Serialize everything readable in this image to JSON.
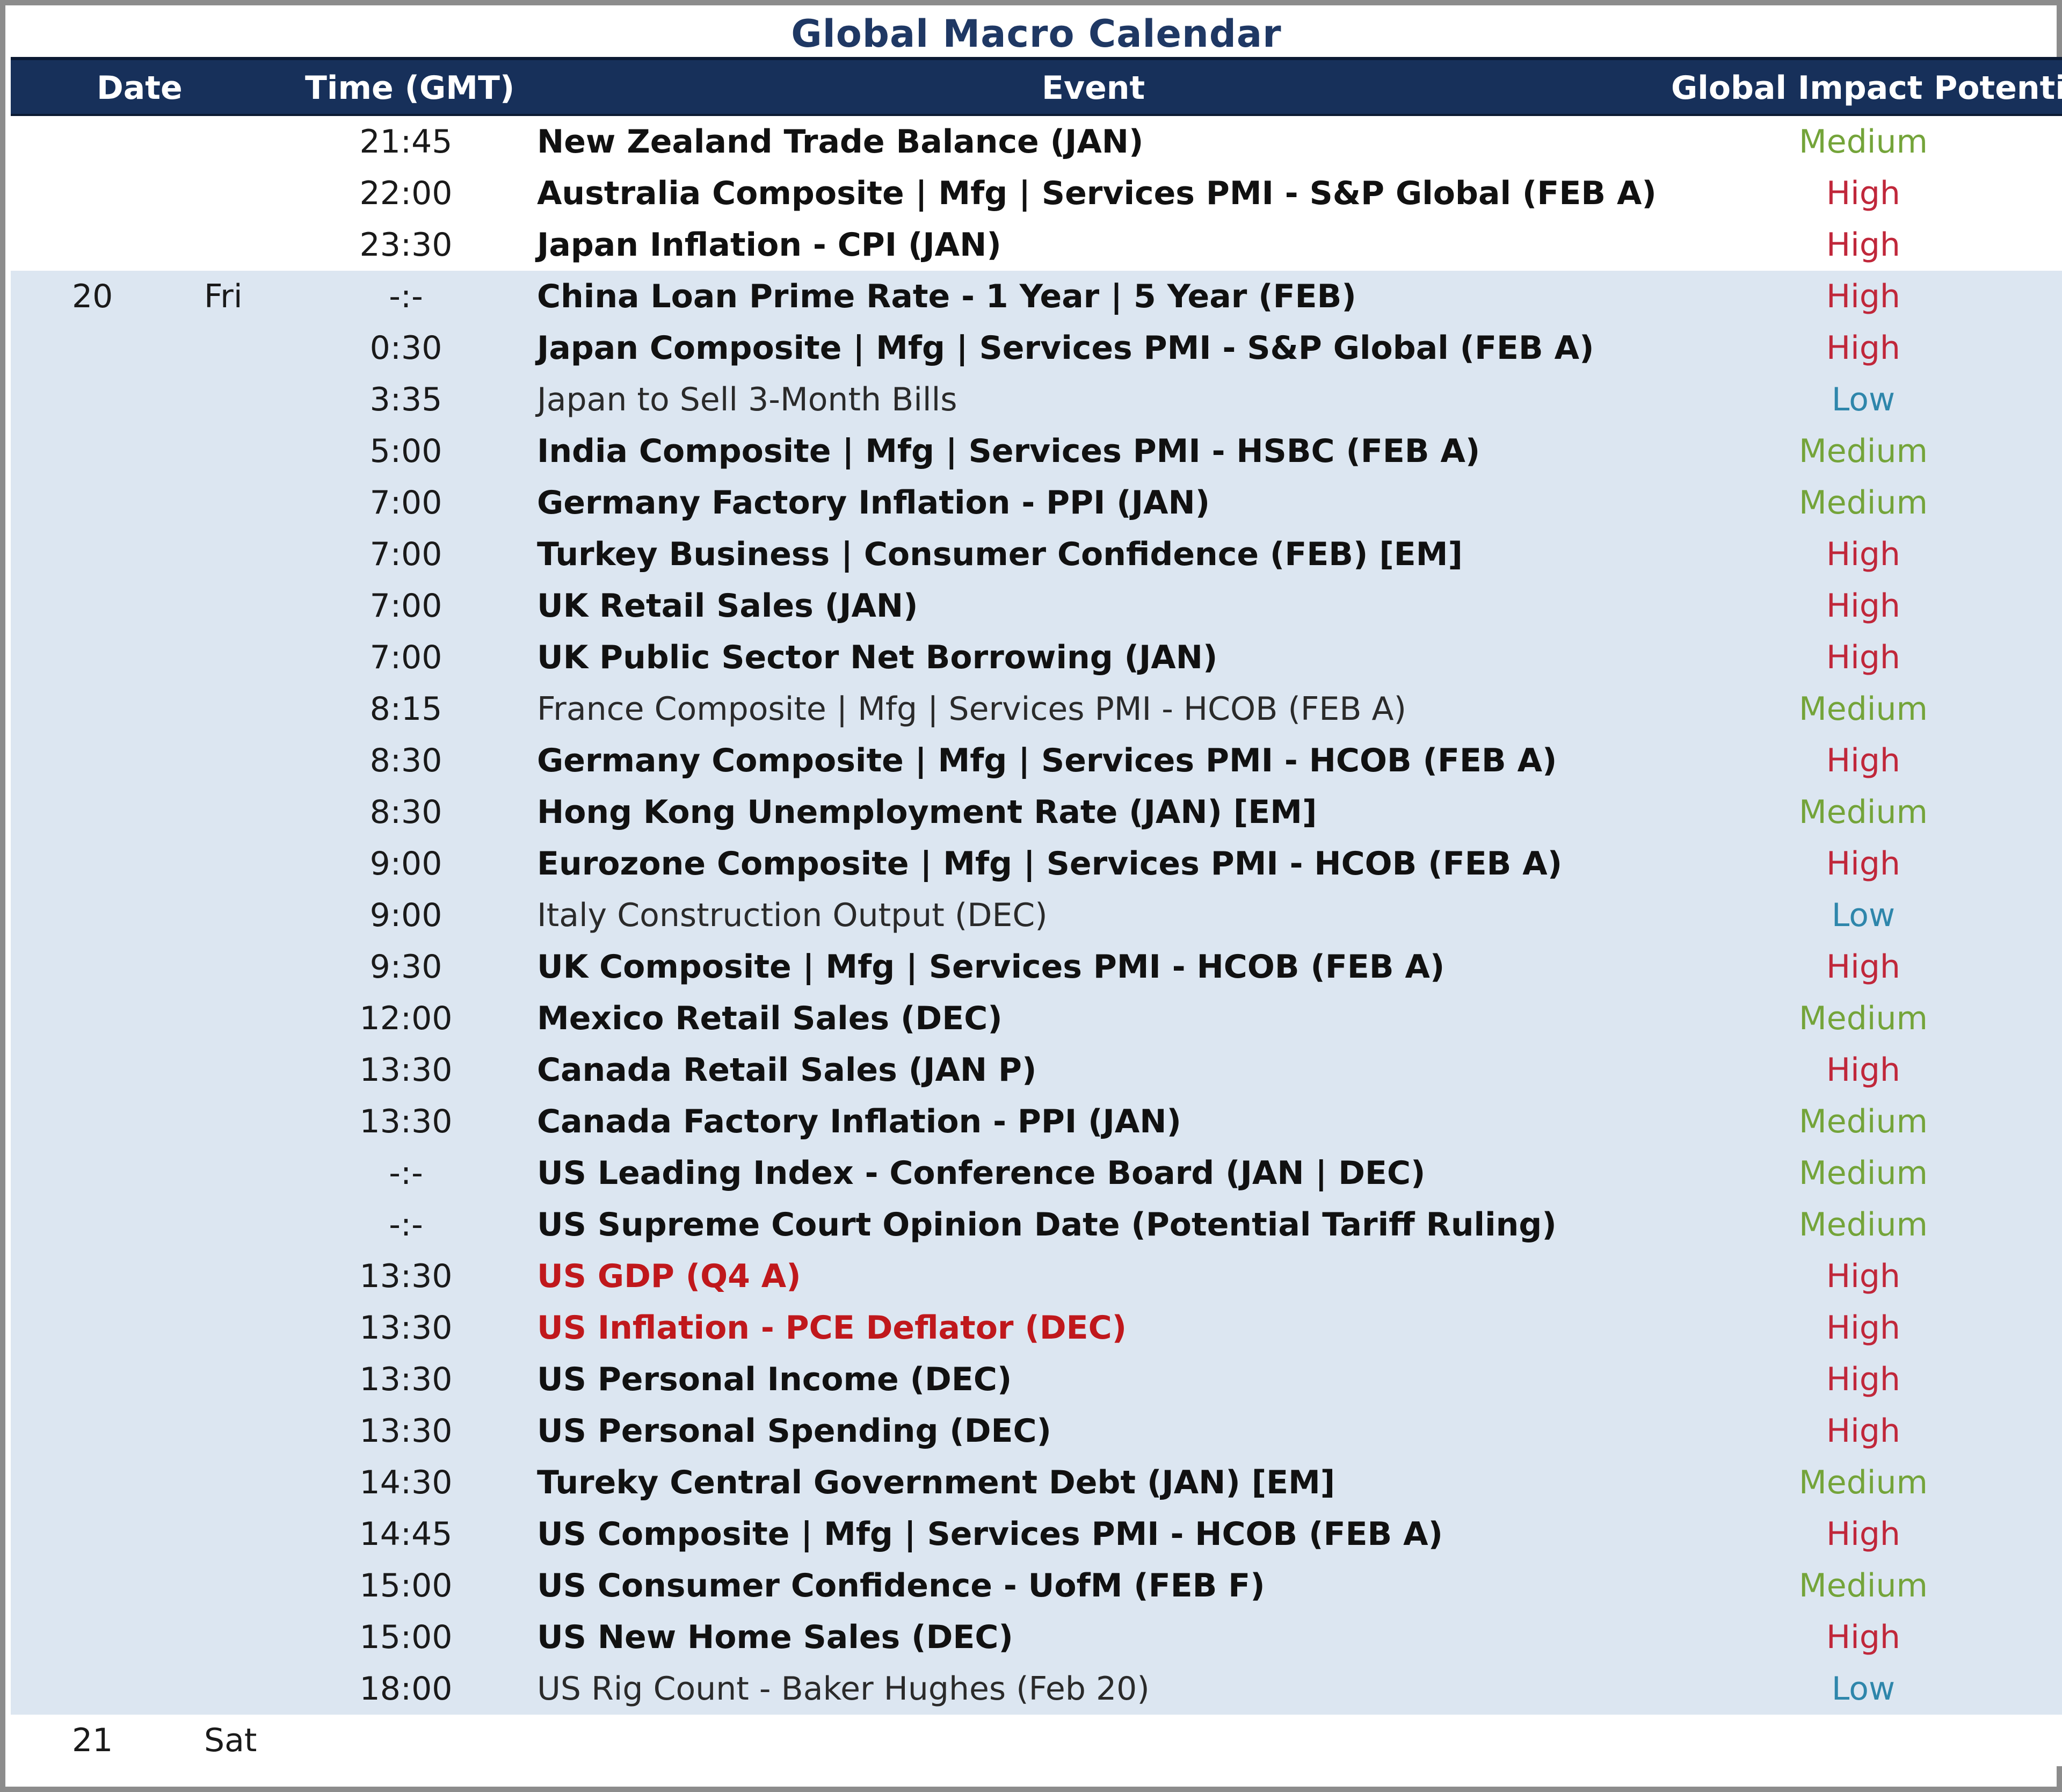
{
  "title": "Global Macro Calendar",
  "columns": {
    "date": "Date",
    "time": "Time (GMT)",
    "event": "Event",
    "impact": "Global Impact Potential"
  },
  "colors": {
    "header_bg": "#17305a",
    "title": "#1f3864",
    "fri_band": "#dce6f1",
    "high": "#c0273a",
    "medium": "#74a43a",
    "low": "#2e86ab",
    "event_highlight": "#c0181c"
  },
  "rows": [
    {
      "date": "",
      "day": "",
      "time": "21:45",
      "event": "New Zealand Trade Balance (JAN)",
      "impact": "Medium"
    },
    {
      "date": "",
      "day": "",
      "time": "22:00",
      "event": "Australia Composite | Mfg | Services PMI - S&P Global (FEB A)",
      "impact": "High"
    },
    {
      "date": "",
      "day": "",
      "time": "23:30",
      "event": "Japan Inflation - CPI (JAN)",
      "impact": "High"
    },
    {
      "date": "20",
      "day": "Fri",
      "time": "-:-",
      "event": "China Loan Prime Rate - 1 Year | 5 Year (FEB)",
      "impact": "High"
    },
    {
      "date": "",
      "day": "",
      "time": "0:30",
      "event": "Japan Composite | Mfg | Services PMI - S&P Global (FEB A)",
      "impact": "High"
    },
    {
      "date": "",
      "day": "",
      "time": "3:35",
      "event": "Japan to Sell 3-Month Bills",
      "impact": "Low"
    },
    {
      "date": "",
      "day": "",
      "time": "5:00",
      "event": "India Composite | Mfg | Services PMI - HSBC (FEB A)",
      "impact": "Medium"
    },
    {
      "date": "",
      "day": "",
      "time": "7:00",
      "event": "Germany Factory Inflation - PPI (JAN)",
      "impact": "Medium"
    },
    {
      "date": "",
      "day": "",
      "time": "7:00",
      "event": "Turkey Business | Consumer Confidence (FEB) [EM]",
      "impact": "High"
    },
    {
      "date": "",
      "day": "",
      "time": "7:00",
      "event": "UK Retail Sales (JAN)",
      "impact": "High"
    },
    {
      "date": "",
      "day": "",
      "time": "7:00",
      "event": "UK Public Sector Net Borrowing (JAN)",
      "impact": "High"
    },
    {
      "date": "",
      "day": "",
      "time": "8:15",
      "event": "France Composite | Mfg | Services PMI - HCOB (FEB A)",
      "impact": "Medium"
    },
    {
      "date": "",
      "day": "",
      "time": "8:30",
      "event": "Germany Composite | Mfg | Services PMI - HCOB (FEB A)",
      "impact": "High"
    },
    {
      "date": "",
      "day": "",
      "time": "8:30",
      "event": "Hong Kong Unemployment Rate (JAN) [EM]",
      "impact": "Medium"
    },
    {
      "date": "",
      "day": "",
      "time": "9:00",
      "event": "Eurozone Composite | Mfg | Services PMI - HCOB (FEB A)",
      "impact": "High"
    },
    {
      "date": "",
      "day": "",
      "time": "9:00",
      "event": "Italy Construction Output (DEC)",
      "impact": "Low"
    },
    {
      "date": "",
      "day": "",
      "time": "9:30",
      "event": "UK Composite | Mfg | Services PMI - HCOB (FEB A)",
      "impact": "High"
    },
    {
      "date": "",
      "day": "",
      "time": "12:00",
      "event": "Mexico Retail Sales (DEC)",
      "impact": "Medium"
    },
    {
      "date": "",
      "day": "",
      "time": "13:30",
      "event": "Canada Retail Sales (JAN P)",
      "impact": "High"
    },
    {
      "date": "",
      "day": "",
      "time": "13:30",
      "event": "Canada Factory Inflation - PPI (JAN)",
      "impact": "Medium"
    },
    {
      "date": "",
      "day": "",
      "time": "-:-",
      "event": "US Leading Index - Conference Board (JAN | DEC)",
      "impact": "Medium"
    },
    {
      "date": "",
      "day": "",
      "time": "-:-",
      "event": "US Supreme Court Opinion Date (Potential Tariff Ruling)",
      "impact": "Medium"
    },
    {
      "date": "",
      "day": "",
      "time": "13:30",
      "event": "US GDP (Q4 A)",
      "impact": "High"
    },
    {
      "date": "",
      "day": "",
      "time": "13:30",
      "event": "US Inflation - PCE Deflator (DEC)",
      "impact": "High"
    },
    {
      "date": "",
      "day": "",
      "time": "13:30",
      "event": "US Personal Income (DEC)",
      "impact": "High"
    },
    {
      "date": "",
      "day": "",
      "time": "13:30",
      "event": "US Personal Spending (DEC)",
      "impact": "High"
    },
    {
      "date": "",
      "day": "",
      "time": "14:30",
      "event": "Tureky Central Government Debt (JAN) [EM]",
      "impact": "Medium"
    },
    {
      "date": "",
      "day": "",
      "time": "14:45",
      "event": "US Composite | Mfg | Services PMI - HCOB (FEB A)",
      "impact": "High"
    },
    {
      "date": "",
      "day": "",
      "time": "15:00",
      "event": "US Consumer Confidence - UofM (FEB F)",
      "impact": "Medium"
    },
    {
      "date": "",
      "day": "",
      "time": "15:00",
      "event": "US New Home Sales (DEC)",
      "impact": "High"
    },
    {
      "date": "",
      "day": "",
      "time": "18:00",
      "event": "US Rig Count - Baker Hughes (Feb 20)",
      "impact": "Low"
    },
    {
      "date": "21",
      "day": "Sat",
      "time": "",
      "event": "",
      "impact": ""
    }
  ]
}
